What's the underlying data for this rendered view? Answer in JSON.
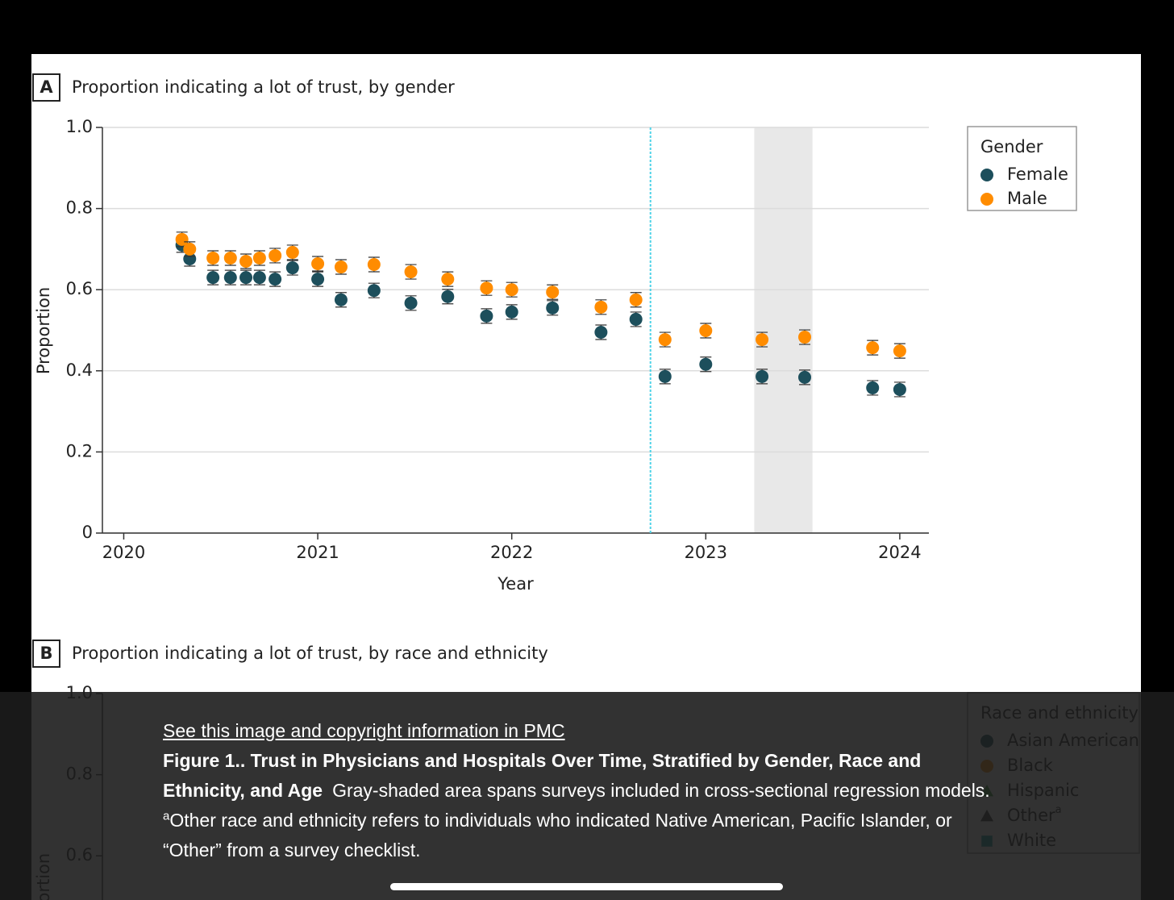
{
  "chart_data": [
    {
      "type": "scatter",
      "panel_label": "A",
      "title": "Proportion indicating a lot of trust, by gender",
      "x_label": "Year",
      "y_label": "Proportion",
      "x": [
        2020.3,
        2020.34,
        2020.46,
        2020.55,
        2020.63,
        2020.7,
        2020.78,
        2020.87,
        2021.0,
        2021.12,
        2021.29,
        2021.48,
        2021.67,
        2021.87,
        2022.0,
        2022.21,
        2022.46,
        2022.64,
        2022.79,
        2023.0,
        2023.29,
        2023.51,
        2023.86,
        2024.0
      ],
      "series": [
        {
          "name": "Female",
          "color": "#1d4f5c",
          "values": [
            0.71,
            0.676,
            0.63,
            0.63,
            0.63,
            0.63,
            0.626,
            0.654,
            0.626,
            0.575,
            0.598,
            0.567,
            0.583,
            0.535,
            0.545,
            0.555,
            0.495,
            0.527,
            0.386,
            0.416,
            0.386,
            0.384,
            0.358,
            0.354
          ]
        },
        {
          "name": "Male",
          "color": "#ff8c00",
          "values": [
            0.724,
            0.7,
            0.678,
            0.678,
            0.67,
            0.678,
            0.684,
            0.692,
            0.664,
            0.656,
            0.662,
            0.644,
            0.626,
            0.604,
            0.6,
            0.594,
            0.557,
            0.575,
            0.477,
            0.499,
            0.477,
            0.483,
            0.457,
            0.449
          ]
        }
      ],
      "xlim": [
        2019.89,
        2024.15
      ],
      "xticks": [
        2020,
        2021,
        2022,
        2023,
        2024
      ],
      "ylim": [
        0,
        1
      ],
      "yticks": [
        0,
        0.2,
        0.4,
        0.6,
        0.8,
        {
          "value": 1,
          "label": "1.0"
        }
      ],
      "grid": true,
      "reference_line_x": 2022.715,
      "shaded_x": [
        2023.25,
        2023.55
      ],
      "reference_line_color": "#4fd3e8",
      "shade_color": "#e8e8e8",
      "legend_title": "Gender",
      "legend": "outside-right"
    },
    {
      "type": "scatter",
      "panel_label": "B",
      "title": "Proportion indicating a lot of trust, by race and ethnicity",
      "y_label": "Proportion",
      "x": [],
      "series": [
        {
          "name": "Asian American",
          "color": "#1d4f5c",
          "marker": "circle",
          "values": []
        },
        {
          "name": "Black",
          "color": "#ff8c00",
          "marker": "circle",
          "values": []
        },
        {
          "name": "Hispanic",
          "color": "#3a9a3a",
          "marker": "triangle",
          "values": []
        },
        {
          "name": "Other",
          "note": "a",
          "color": "#333333",
          "marker": "triangle",
          "values": []
        },
        {
          "name": "White",
          "color": "#19a3a3",
          "marker": "square",
          "values": []
        }
      ],
      "ylim": [
        0,
        1
      ],
      "yticks": [
        0.6,
        0.8,
        {
          "value": 1,
          "label": "1.0"
        }
      ],
      "legend_title": "Race and ethnicity",
      "legend": "outside-right"
    }
  ],
  "caption": {
    "link": "See this image and copyright information in PMC",
    "title": "Figure 1.. Trust in Physicians and Hospitals Over Time, Stratified by Gender, Race and Ethnicity, and Age",
    "text_1": "Gray-shaded area spans surveys included in cross-sectional regression models.",
    "sup": "a",
    "text_2": "Other race and ethnicity refers to individuals who indicated Native American, Pacific Islander, or “Other” from a survey checklist."
  }
}
